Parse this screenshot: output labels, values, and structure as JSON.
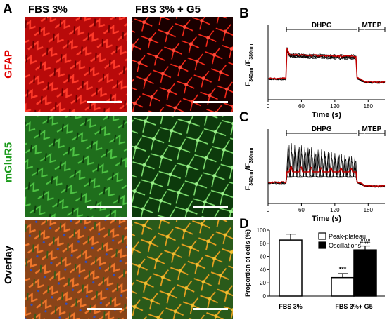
{
  "panels": {
    "A": "A",
    "B": "B",
    "C": "C",
    "D": "D"
  },
  "columns": [
    "FBS 3%",
    "FBS 3% + G5"
  ],
  "rows": [
    {
      "label": "GFAP",
      "color": "#e00000"
    },
    {
      "label": "mGluR5",
      "color": "#1a9a1a"
    },
    {
      "label": "Overlay",
      "color": "#000000"
    }
  ],
  "colors": {
    "gfap": "#d41010",
    "mglur5": "#2fae2a",
    "overlay": "#d8661c",
    "mean_trace": "#c00000",
    "trace": "#000000"
  },
  "chart_data": [
    {
      "id": "B",
      "type": "line",
      "xlabel": "Time (s)",
      "ylabel_main": "F",
      "ylabel_sub1": "340nm",
      "ylabel_sep": "/F",
      "ylabel_sub2": "380nm",
      "xlim": [
        0,
        210
      ],
      "xticks": [
        "0",
        "60",
        "120",
        "180"
      ],
      "xtick_values": [
        0,
        60,
        120,
        180
      ],
      "annotations": [
        {
          "label": "DHPG",
          "x_start": 33,
          "x_end": 160
        },
        {
          "label": "MTEP",
          "x_start": 163,
          "x_end": 210
        }
      ],
      "pattern": "peak-plateau"
    },
    {
      "id": "C",
      "type": "line",
      "xlabel": "Time (s)",
      "ylabel_main": "F",
      "ylabel_sub1": "340nm",
      "ylabel_sep": "/F",
      "ylabel_sub2": "380nm",
      "xlim": [
        0,
        210
      ],
      "xticks": [
        "0",
        "60",
        "120",
        "180"
      ],
      "xtick_values": [
        0,
        60,
        120,
        180
      ],
      "annotations": [
        {
          "label": "DHPG",
          "x_start": 33,
          "x_end": 160
        },
        {
          "label": "MTEP",
          "x_start": 163,
          "x_end": 210
        }
      ],
      "pattern": "oscillations"
    },
    {
      "id": "D",
      "type": "bar",
      "ylabel": "Proportion of cells (%)",
      "ylim": [
        0,
        100
      ],
      "yticks": [
        "0",
        "20",
        "40",
        "60",
        "80",
        "100"
      ],
      "ytick_values": [
        0,
        20,
        40,
        60,
        80,
        100
      ],
      "categories": [
        "FBS 3%",
        "FBS 3%+ G5"
      ],
      "series": [
        {
          "name": "Peak-plateau",
          "color": "#ffffff",
          "values": [
            85,
            28
          ],
          "errors": [
            9,
            6
          ]
        },
        {
          "name": "Oscillations",
          "color": "#000000",
          "values": [
            0,
            70
          ],
          "errors": [
            0,
            6
          ]
        }
      ],
      "significance": [
        {
          "label": "***",
          "category": 1,
          "series": 0
        },
        {
          "label": "###",
          "category": 1,
          "series": 1
        }
      ]
    }
  ]
}
